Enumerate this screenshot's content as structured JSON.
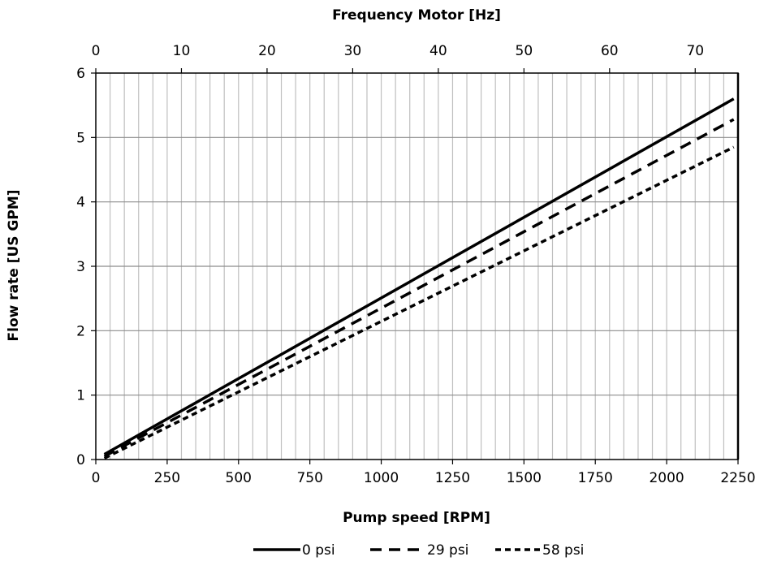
{
  "chart_data": {
    "type": "line",
    "title": "",
    "xlabel": "Pump speed [RPM]",
    "ylabel": "Flow rate [US GPM]",
    "x2label": "Frequency Motor [Hz]",
    "xlim": [
      0,
      2250
    ],
    "ylim": [
      0,
      6
    ],
    "x2lim": [
      0,
      75
    ],
    "xticks": [
      0,
      250,
      500,
      750,
      1000,
      1250,
      1500,
      1750,
      2000,
      2250
    ],
    "yticks": [
      0,
      1,
      2,
      3,
      4,
      5,
      6
    ],
    "x2ticks": [
      0,
      10,
      20,
      30,
      40,
      50,
      60,
      70
    ],
    "grid": true,
    "grid_minor_x_step": 50,
    "legend_position": "bottom",
    "line_color": "#000000",
    "grid_color": "#bfbfbf",
    "series": [
      {
        "name": "0 psi",
        "style": "solid",
        "x": [
          30,
          2235
        ],
        "y": [
          0.08,
          5.6
        ]
      },
      {
        "name": "29 psi",
        "style": "dashed",
        "x": [
          30,
          2235
        ],
        "y": [
          0.05,
          5.28
        ]
      },
      {
        "name": "58 psi",
        "style": "dotted",
        "x": [
          30,
          2235
        ],
        "y": [
          0.02,
          4.85
        ]
      }
    ]
  }
}
